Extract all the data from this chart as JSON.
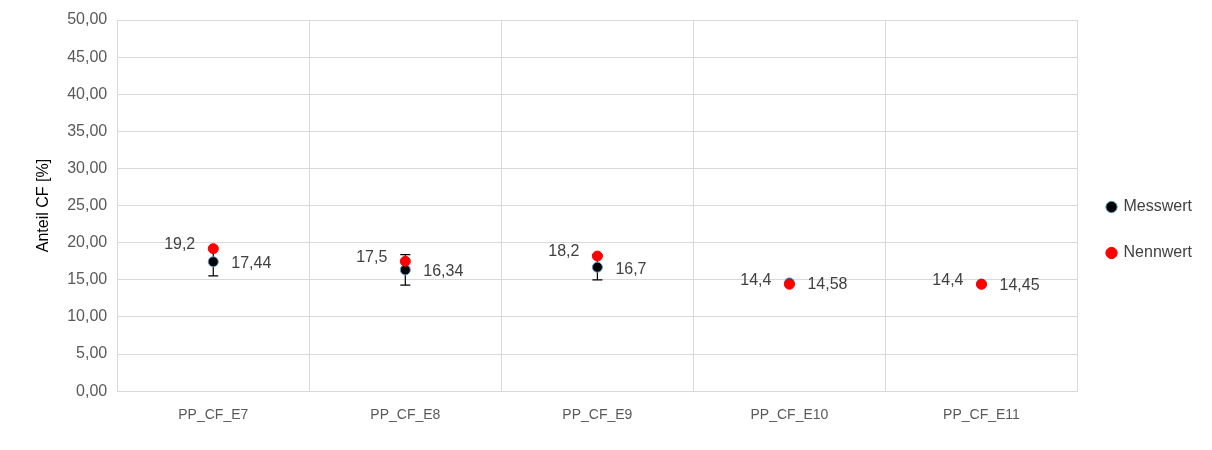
{
  "chart_data": {
    "type": "scatter",
    "ylabel": "Anteil CF [%]",
    "categories": [
      "PP_CF_E7",
      "PP_CF_E8",
      "PP_CF_E9",
      "PP_CF_E10",
      "PP_CF_E11"
    ],
    "series": [
      {
        "name": "Messwert",
        "color": "#000000",
        "values": [
          17.44,
          16.34,
          16.7,
          14.58,
          14.45
        ],
        "errors": [
          1.9,
          2.05,
          1.7,
          null,
          null
        ],
        "value_labels": [
          "17,44",
          "16,34",
          "16,7",
          "14,58",
          "14,45"
        ]
      },
      {
        "name": "Nennwert",
        "color": "#ff0000",
        "values": [
          19.2,
          17.5,
          18.2,
          14.4,
          14.4
        ],
        "value_labels": [
          "19,2",
          "17,5",
          "18,2",
          "14,4",
          "14,4"
        ]
      }
    ],
    "ylim": [
      0,
      50
    ],
    "yticks": [
      {
        "value": 0,
        "label": "0,00"
      },
      {
        "value": 5,
        "label": "5,00"
      },
      {
        "value": 10,
        "label": "10,00"
      },
      {
        "value": 15,
        "label": "15,00"
      },
      {
        "value": 20,
        "label": "20,00"
      },
      {
        "value": 25,
        "label": "25,00"
      },
      {
        "value": 30,
        "label": "30,00"
      },
      {
        "value": 35,
        "label": "35,00"
      },
      {
        "value": 40,
        "label": "40,00"
      },
      {
        "value": 45,
        "label": "45,00"
      },
      {
        "value": 50,
        "label": "50,00"
      }
    ],
    "grid": true,
    "legend": "right",
    "marker": "circle"
  }
}
